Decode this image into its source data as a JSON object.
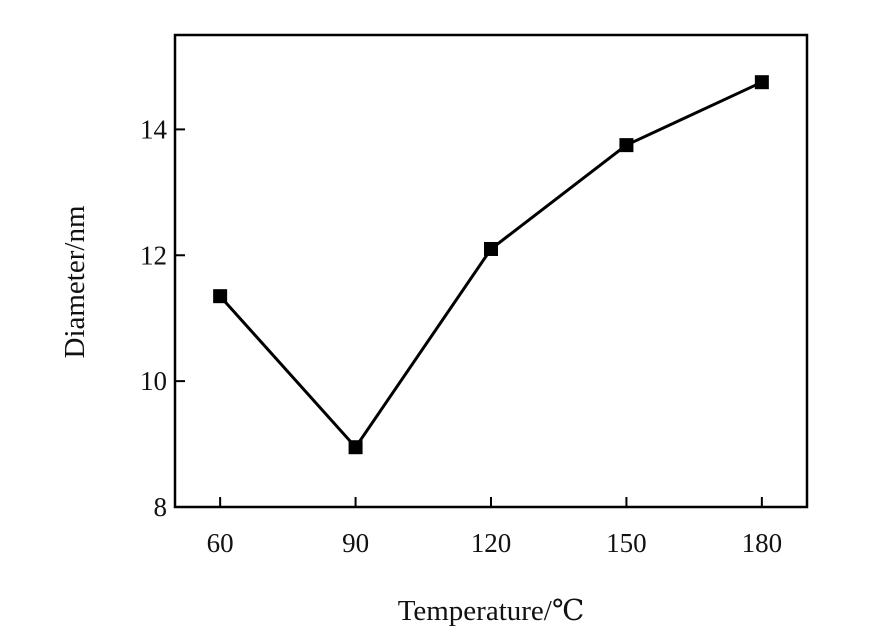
{
  "chart_data": {
    "type": "line",
    "title": "",
    "xlabel": "Temperature/℃",
    "ylabel": "Diameter/nm",
    "x": [
      60,
      90,
      120,
      150,
      180
    ],
    "xticks": [
      "60",
      "90",
      "120",
      "150",
      "180"
    ],
    "yticks": [
      "8",
      "10",
      "12",
      "14"
    ],
    "ytick_values": [
      8,
      10,
      12,
      14
    ],
    "xlim": [
      50,
      190
    ],
    "ylim": [
      8,
      15.5
    ],
    "grid": false,
    "marker": "square",
    "series": [
      {
        "values": [
          11.35,
          8.95,
          12.1,
          13.75,
          14.75
        ]
      }
    ],
    "colors": {
      "line": "#000000",
      "axis": "#000000"
    }
  }
}
